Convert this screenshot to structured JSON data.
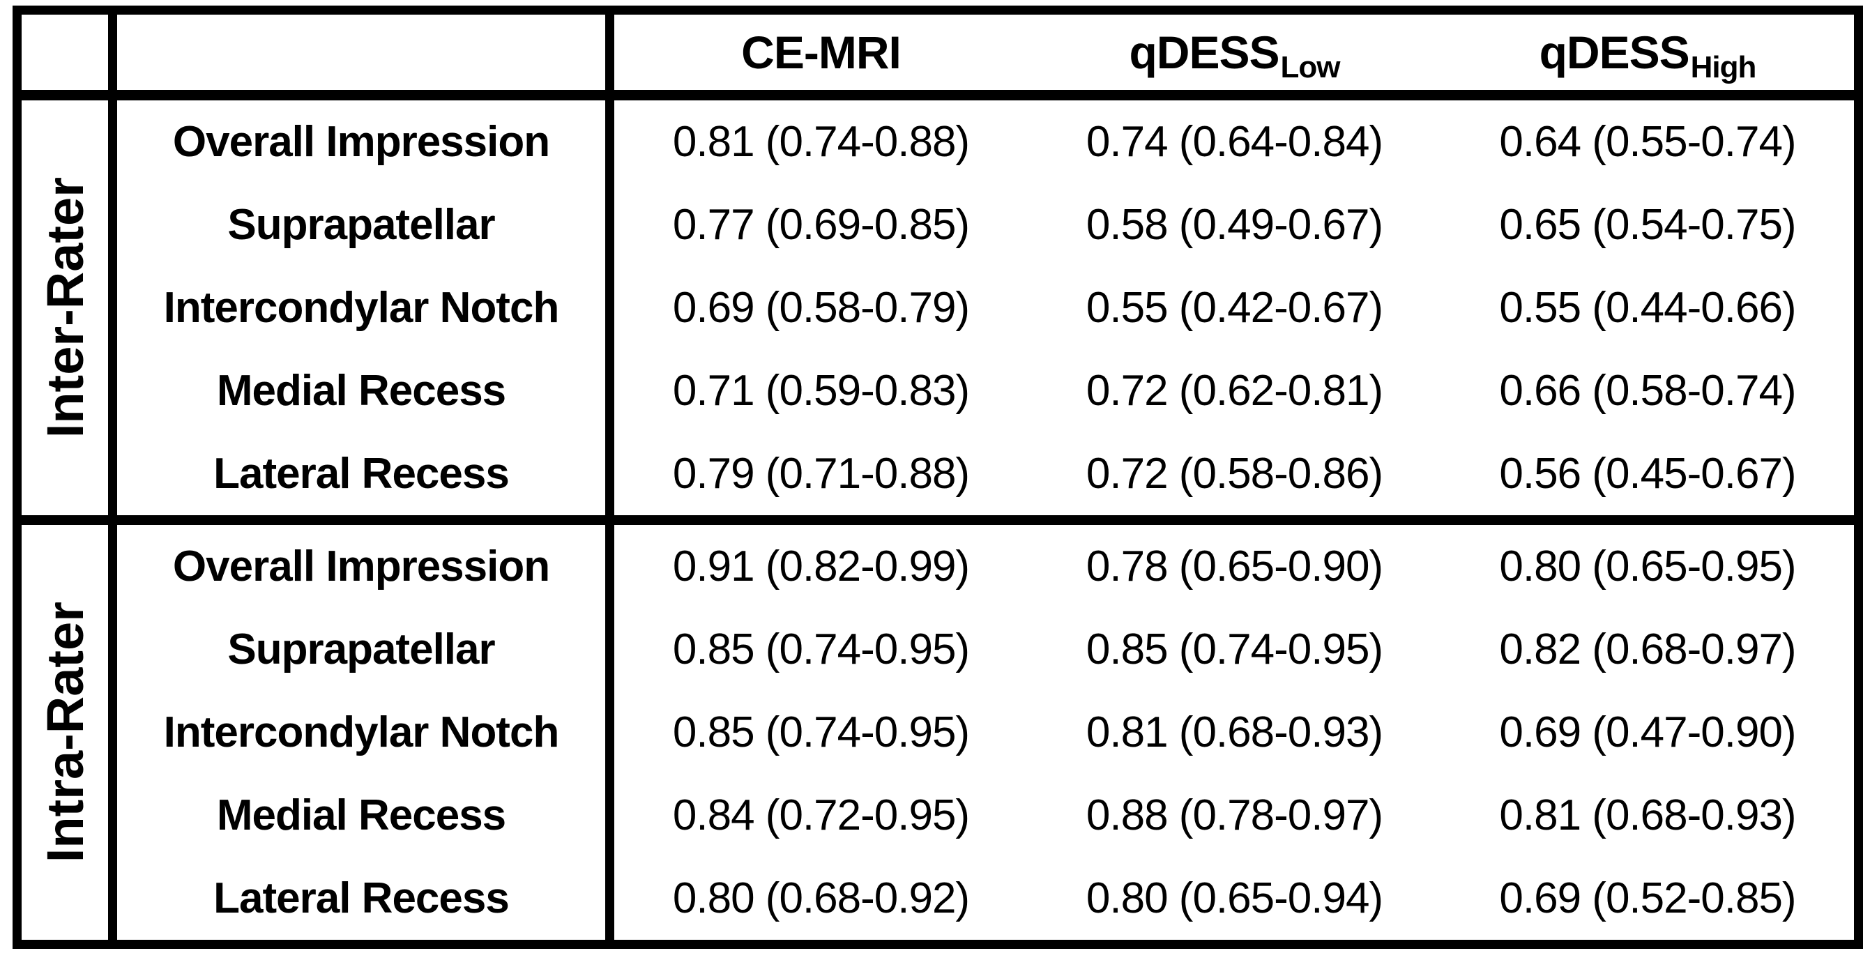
{
  "table": {
    "title_hint": "Reliability table with 95% confidence intervals",
    "columns": [
      {
        "label": "CE-MRI",
        "subscript": ""
      },
      {
        "label": "qDESS",
        "subscript": "Low"
      },
      {
        "label": "qDESS",
        "subscript": "High"
      }
    ],
    "sections": [
      {
        "label": "Inter-Rater",
        "rows": [
          {
            "region": "Overall Impression",
            "values": [
              "0.81 (0.74-0.88)",
              "0.74 (0.64-0.84)",
              "0.64 (0.55-0.74)"
            ]
          },
          {
            "region": "Suprapatellar",
            "values": [
              "0.77 (0.69-0.85)",
              "0.58 (0.49-0.67)",
              "0.65 (0.54-0.75)"
            ]
          },
          {
            "region": "Intercondylar Notch",
            "values": [
              "0.69 (0.58-0.79)",
              "0.55 (0.42-0.67)",
              "0.55 (0.44-0.66)"
            ]
          },
          {
            "region": "Medial Recess",
            "values": [
              "0.71 (0.59-0.83)",
              "0.72 (0.62-0.81)",
              "0.66 (0.58-0.74)"
            ]
          },
          {
            "region": "Lateral Recess",
            "values": [
              "0.79 (0.71-0.88)",
              "0.72 (0.58-0.86)",
              "0.56 (0.45-0.67)"
            ]
          }
        ]
      },
      {
        "label": "Intra-Rater",
        "rows": [
          {
            "region": "Overall Impression",
            "values": [
              "0.91 (0.82-0.99)",
              "0.78 (0.65-0.90)",
              "0.80 (0.65-0.95)"
            ]
          },
          {
            "region": "Suprapatellar",
            "values": [
              "0.85 (0.74-0.95)",
              "0.85 (0.74-0.95)",
              "0.82 (0.68-0.97)"
            ]
          },
          {
            "region": "Intercondylar Notch",
            "values": [
              "0.85 (0.74-0.95)",
              "0.81 (0.68-0.93)",
              "0.69 (0.47-0.90)"
            ]
          },
          {
            "region": "Medial Recess",
            "values": [
              "0.84 (0.72-0.95)",
              "0.88 (0.78-0.97)",
              "0.81 (0.68-0.93)"
            ]
          },
          {
            "region": "Lateral Recess",
            "values": [
              "0.80 (0.68-0.92)",
              "0.80 (0.65-0.94)",
              "0.69 (0.52-0.85)"
            ]
          }
        ]
      }
    ],
    "colors": {
      "border": "#000000",
      "background": "#ffffff",
      "text": "#000000"
    }
  },
  "chart_data": {
    "type": "table",
    "title": "Inter-Rater and Intra-Rater reliability (95% CI) by region and sequence",
    "column_headers": [
      "CE-MRI",
      "qDESS Low",
      "qDESS High"
    ],
    "row_groups": [
      "Inter-Rater",
      "Intra-Rater"
    ],
    "row_labels": [
      "Overall Impression",
      "Suprapatellar",
      "Intercondylar Notch",
      "Medial Recess",
      "Lateral Recess"
    ],
    "inter_rater_point_estimates": {
      "CE-MRI": [
        0.81,
        0.77,
        0.69,
        0.71,
        0.79
      ],
      "qDESS_Low": [
        0.74,
        0.58,
        0.55,
        0.72,
        0.72
      ],
      "qDESS_High": [
        0.64,
        0.65,
        0.55,
        0.66,
        0.56
      ]
    },
    "intra_rater_point_estimates": {
      "CE-MRI": [
        0.91,
        0.85,
        0.85,
        0.84,
        0.8
      ],
      "qDESS_Low": [
        0.78,
        0.85,
        0.81,
        0.88,
        0.8
      ],
      "qDESS_High": [
        0.8,
        0.82,
        0.69,
        0.81,
        0.69
      ]
    }
  }
}
